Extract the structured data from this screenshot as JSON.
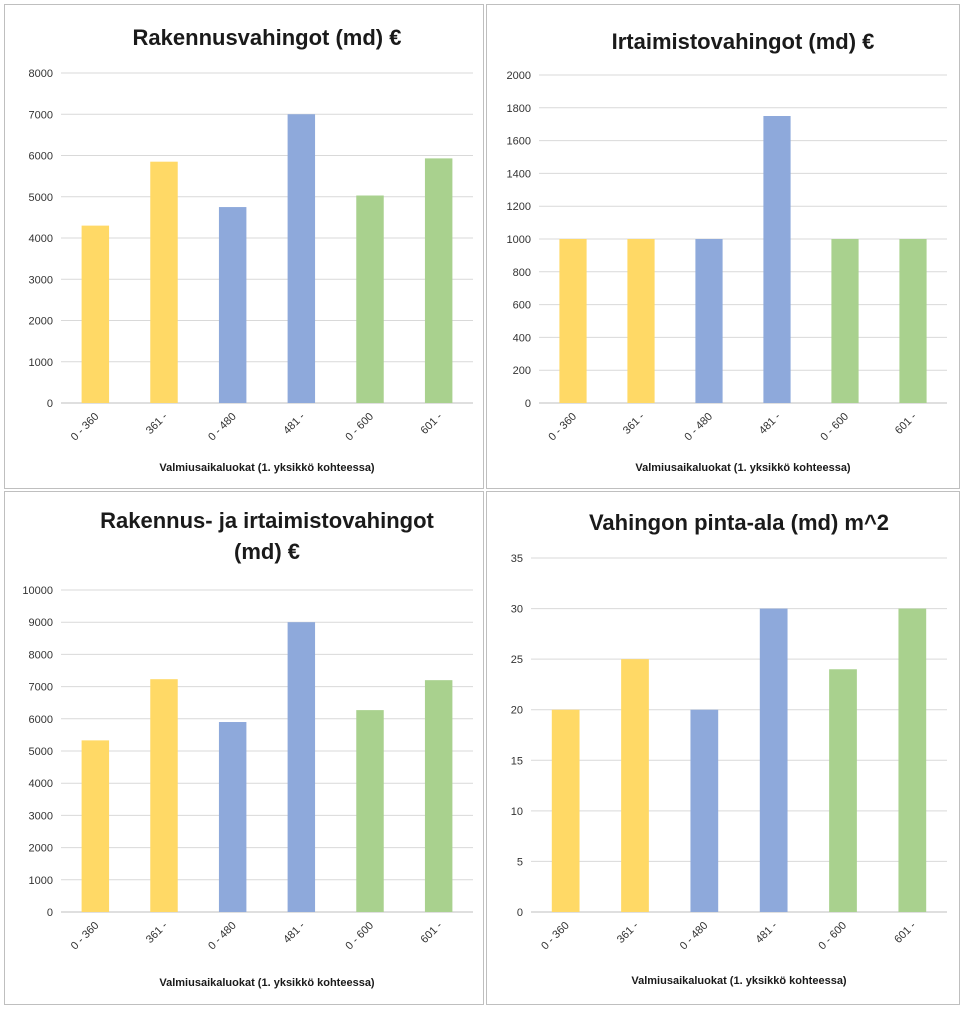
{
  "colors": {
    "yellow": "#FFD966",
    "blue": "#8EA9DB",
    "green": "#A9D18E"
  },
  "chart_data": [
    {
      "type": "bar",
      "title": "Rakennusvahingot (md) €",
      "title_lines": [
        "Rakennusvahingot (md) €"
      ],
      "xlabel": "Valmiusaikaluokat  (1. yksikkö kohteessa)",
      "ylabel": "",
      "categories": [
        "0 - 360",
        "361 -",
        "0 - 480",
        "481 -",
        "0 - 600",
        "601 -"
      ],
      "values": [
        4300,
        5850,
        4750,
        7000,
        5030,
        5930
      ],
      "bar_colors": [
        "yellow",
        "yellow",
        "blue",
        "blue",
        "green",
        "green"
      ],
      "ylim": [
        0,
        8000
      ],
      "yticks": [
        0,
        1000,
        2000,
        3000,
        4000,
        5000,
        6000,
        7000,
        8000
      ],
      "grid": true
    },
    {
      "type": "bar",
      "title": "Irtaimistovahingot (md) €",
      "title_lines": [
        "Irtaimistovahingot (md) €"
      ],
      "xlabel": "Valmiusaikaluokat  (1. yksikkö kohteessa)",
      "ylabel": "",
      "categories": [
        "0 - 360",
        "361 -",
        "0 - 480",
        "481 -",
        "0 - 600",
        "601 -"
      ],
      "values": [
        1000,
        1000,
        1000,
        1750,
        1000,
        1000
      ],
      "bar_colors": [
        "yellow",
        "yellow",
        "blue",
        "blue",
        "green",
        "green"
      ],
      "ylim": [
        0,
        2000
      ],
      "yticks": [
        0,
        200,
        400,
        600,
        800,
        1000,
        1200,
        1400,
        1600,
        1800,
        2000
      ],
      "grid": true
    },
    {
      "type": "bar",
      "title": "Rakennus- ja irtaimistovahingot (md) €",
      "title_lines": [
        "Rakennus- ja irtaimistovahingot",
        "(md) €"
      ],
      "xlabel": "Valmiusaikaluokat  (1. yksikkö kohteessa)",
      "ylabel": "",
      "categories": [
        "0 - 360",
        "361 -",
        "0 - 480",
        "481 -",
        "0 - 600",
        "601 -"
      ],
      "values": [
        5330,
        7230,
        5900,
        9000,
        6270,
        7200
      ],
      "bar_colors": [
        "yellow",
        "yellow",
        "blue",
        "blue",
        "green",
        "green"
      ],
      "ylim": [
        0,
        10000
      ],
      "yticks": [
        0,
        1000,
        2000,
        3000,
        4000,
        5000,
        6000,
        7000,
        8000,
        9000,
        10000
      ],
      "grid": true
    },
    {
      "type": "bar",
      "title": "Vahingon pinta-ala (md) m^2",
      "title_lines": [
        "Vahingon pinta-ala (md) m^2"
      ],
      "xlabel": "Valmiusaikaluokat  (1. yksikkö kohteessa)",
      "ylabel": "",
      "categories": [
        "0 - 360",
        "361 -",
        "0 - 480",
        "481 -",
        "0 - 600",
        "601 -"
      ],
      "values": [
        20,
        25,
        20,
        30,
        24,
        30
      ],
      "bar_colors": [
        "yellow",
        "yellow",
        "blue",
        "blue",
        "green",
        "green"
      ],
      "ylim": [
        0,
        35
      ],
      "yticks": [
        0,
        5,
        10,
        15,
        20,
        25,
        30,
        35
      ],
      "grid": true
    }
  ]
}
